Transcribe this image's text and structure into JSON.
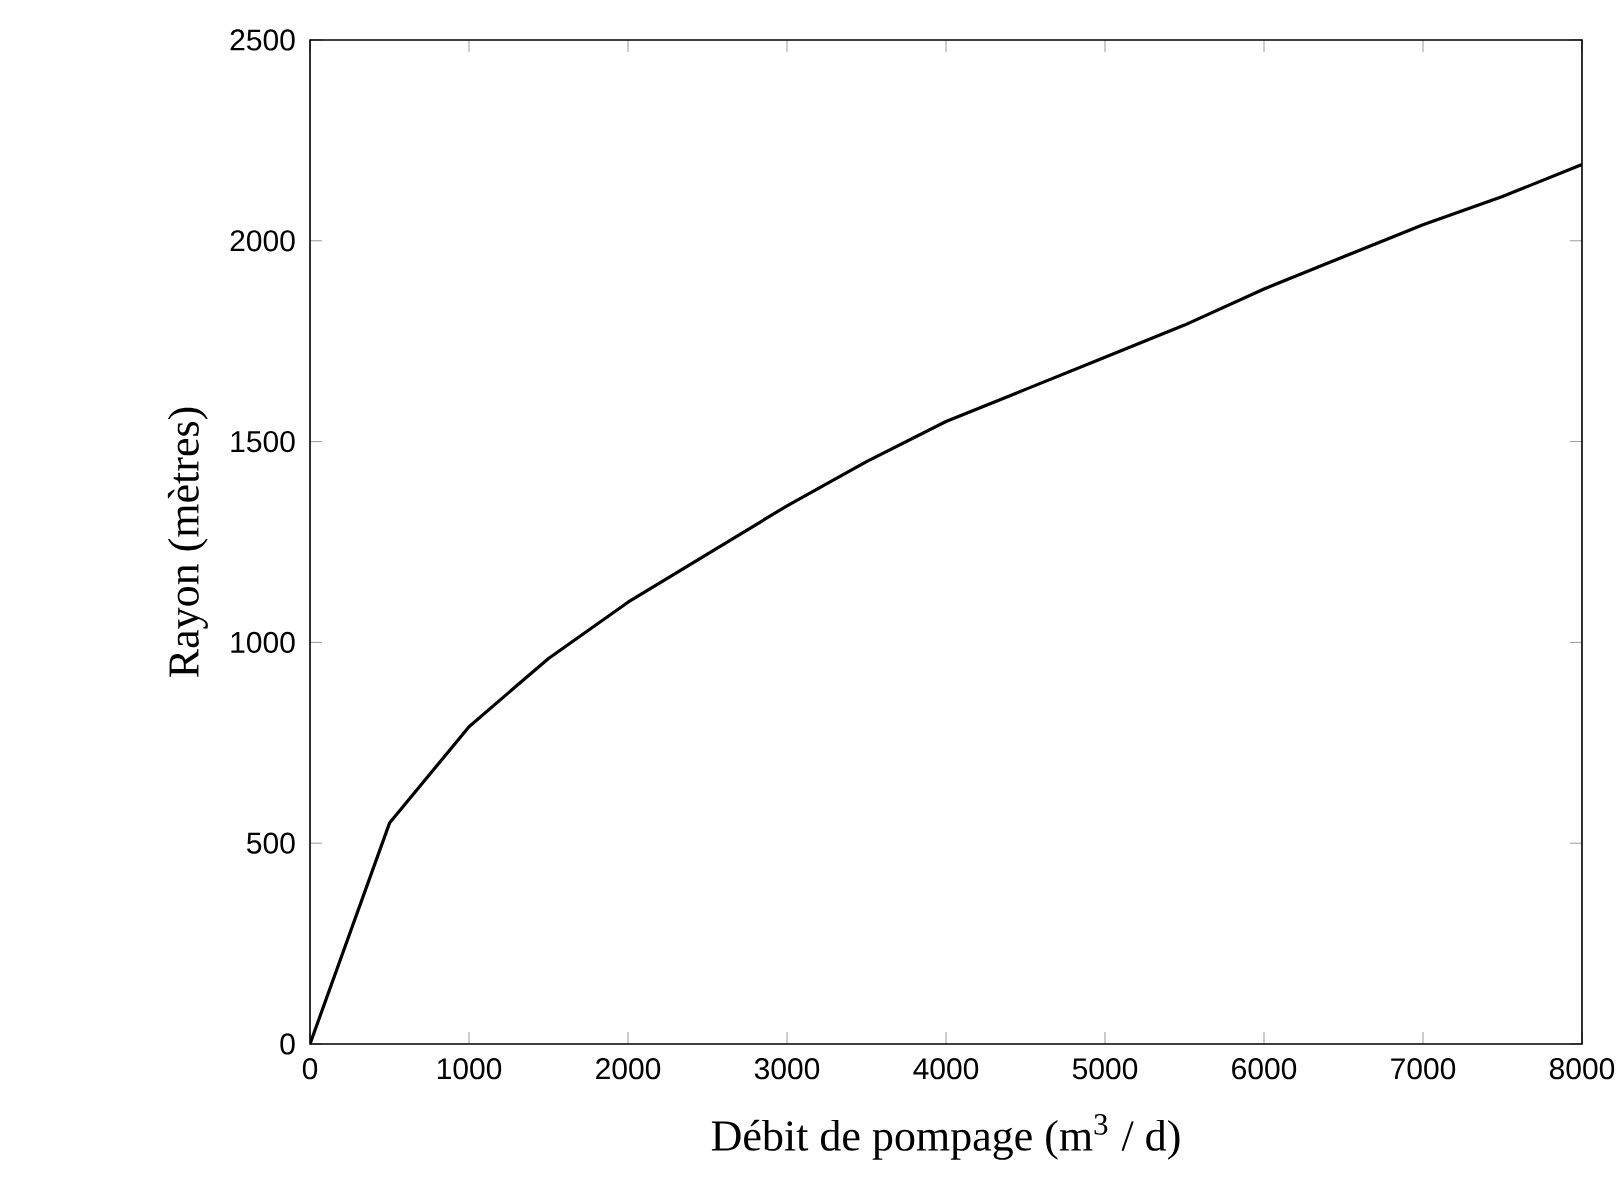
{
  "chart_data": {
    "type": "line",
    "xlabel": "Débit de pompage (m$^{3}$ / d)",
    "ylabel": "Rayon (mètres)",
    "x": [
      0,
      500,
      1000,
      1500,
      2000,
      2500,
      3000,
      3500,
      4000,
      4500,
      5000,
      5500,
      6000,
      6500,
      7000,
      7500,
      8000
    ],
    "values": [
      0,
      550,
      790,
      960,
      1100,
      1220,
      1340,
      1450,
      1550,
      1630,
      1710,
      1790,
      1880,
      1960,
      2040,
      2110,
      2190
    ],
    "color": "#000000",
    "xlim": [
      0,
      8000
    ],
    "ylim": [
      0,
      2500
    ],
    "xticks": [
      0,
      1000,
      2000,
      3000,
      4000,
      5000,
      6000,
      7000,
      8000
    ],
    "yticks": [
      0,
      500,
      1000,
      1500,
      2000,
      2500
    ]
  }
}
